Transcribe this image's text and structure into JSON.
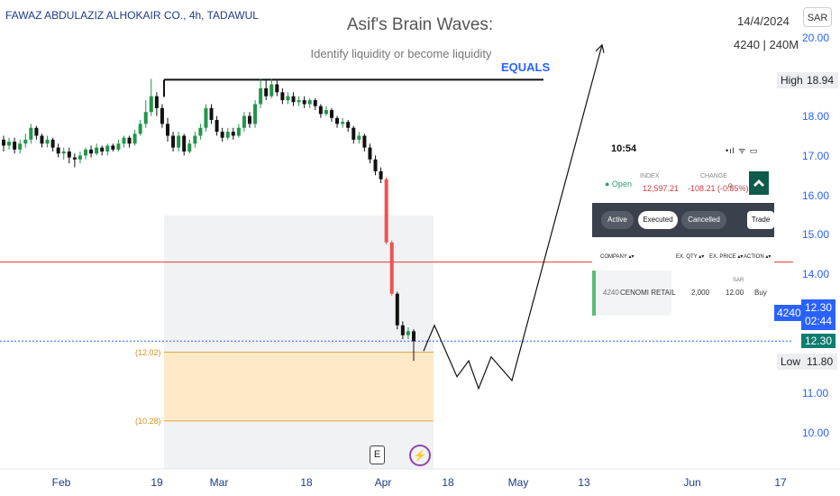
{
  "header": {
    "symbol": "FAWAZ ABDULAZIZ ALHOKAIR CO., 4h, TADAWUL",
    "title": "Asif's Brain Waves:",
    "subtitle": "Identify liquidity or become liquidity",
    "equals_label": "EQUALS",
    "date": "14/4/2024",
    "info": "4240 | 240M",
    "currency": "SAR"
  },
  "axis": {
    "y_ticks": [
      "20.00",
      "19.00",
      "18.00",
      "17.00",
      "16.00",
      "15.00",
      "14.00",
      "11.00",
      "10.00"
    ],
    "x_ticks": [
      "Feb",
      "19",
      "Mar",
      "18",
      "Apr",
      "18",
      "May",
      "13",
      "Jun",
      "17"
    ]
  },
  "side_labels": {
    "high_label": "High",
    "high_value": "18.94",
    "ticker": "4240",
    "last_price": "12.30",
    "countdown": "02:44",
    "last_price2": "12.30",
    "low_label": "Low",
    "low_value": "11.80"
  },
  "fib": {
    "upper": "(12.02)",
    "lower": "(10.28)"
  },
  "icons": {
    "event": "E",
    "event_icon": "earnings-icon",
    "flash_icon": "lightning-icon"
  },
  "colors": {
    "up": "#22954a",
    "down": "#111111",
    "drop": "#ef5350",
    "accent": "#2962ff",
    "zone": "#ffe9c7",
    "redline": "#e53935",
    "panel_dark": "#3b414c"
  },
  "chart_data": {
    "type": "candlestick",
    "series": [
      {
        "o": 17.4,
        "c": 17.25,
        "h": 17.5,
        "l": 17.1
      },
      {
        "o": 17.25,
        "c": 17.35,
        "h": 17.45,
        "l": 17.15
      },
      {
        "o": 17.35,
        "c": 17.15,
        "h": 17.45,
        "l": 17.05
      },
      {
        "o": 17.15,
        "c": 17.3,
        "h": 17.4,
        "l": 17.05
      },
      {
        "o": 17.3,
        "c": 17.4,
        "h": 17.55,
        "l": 17.2
      },
      {
        "o": 17.4,
        "c": 17.7,
        "h": 17.8,
        "l": 17.3
      },
      {
        "o": 17.7,
        "c": 17.5,
        "h": 17.75,
        "l": 17.4
      },
      {
        "o": 17.5,
        "c": 17.3,
        "h": 17.55,
        "l": 17.2
      },
      {
        "o": 17.3,
        "c": 17.4,
        "h": 17.5,
        "l": 17.2
      },
      {
        "o": 17.4,
        "c": 17.2,
        "h": 17.45,
        "l": 17.1
      },
      {
        "o": 17.2,
        "c": 17.05,
        "h": 17.3,
        "l": 16.95
      },
      {
        "o": 17.05,
        "c": 17.1,
        "h": 17.2,
        "l": 16.9
      },
      {
        "o": 17.1,
        "c": 16.95,
        "h": 17.2,
        "l": 16.8
      },
      {
        "o": 16.95,
        "c": 16.9,
        "h": 17.05,
        "l": 16.7
      },
      {
        "o": 16.9,
        "c": 17.0,
        "h": 17.1,
        "l": 16.8
      },
      {
        "o": 17.0,
        "c": 17.15,
        "h": 17.2,
        "l": 16.9
      },
      {
        "o": 17.15,
        "c": 17.05,
        "h": 17.25,
        "l": 16.95
      },
      {
        "o": 17.05,
        "c": 17.2,
        "h": 17.3,
        "l": 17.0
      },
      {
        "o": 17.2,
        "c": 17.1,
        "h": 17.25,
        "l": 17.0
      },
      {
        "o": 17.1,
        "c": 17.25,
        "h": 17.3,
        "l": 17.0
      },
      {
        "o": 17.25,
        "c": 17.15,
        "h": 17.3,
        "l": 17.1
      },
      {
        "o": 17.15,
        "c": 17.3,
        "h": 17.4,
        "l": 17.1
      },
      {
        "o": 17.3,
        "c": 17.45,
        "h": 17.5,
        "l": 17.2
      },
      {
        "o": 17.45,
        "c": 17.3,
        "h": 17.5,
        "l": 17.2
      },
      {
        "o": 17.3,
        "c": 17.55,
        "h": 17.65,
        "l": 17.25
      },
      {
        "o": 17.55,
        "c": 17.8,
        "h": 17.9,
        "l": 17.5
      },
      {
        "o": 17.8,
        "c": 18.1,
        "h": 18.4,
        "l": 17.7
      },
      {
        "o": 18.1,
        "c": 18.5,
        "h": 18.94,
        "l": 18.0
      },
      {
        "o": 18.5,
        "c": 18.2,
        "h": 18.6,
        "l": 18.0
      },
      {
        "o": 18.2,
        "c": 17.8,
        "h": 18.3,
        "l": 17.7
      },
      {
        "o": 17.8,
        "c": 17.5,
        "h": 17.95,
        "l": 17.35
      },
      {
        "o": 17.5,
        "c": 17.2,
        "h": 17.6,
        "l": 17.1
      },
      {
        "o": 17.2,
        "c": 17.5,
        "h": 17.6,
        "l": 17.1
      },
      {
        "o": 17.5,
        "c": 17.1,
        "h": 17.55,
        "l": 17.0
      },
      {
        "o": 17.1,
        "c": 17.3,
        "h": 17.4,
        "l": 17.05
      },
      {
        "o": 17.3,
        "c": 17.5,
        "h": 17.6,
        "l": 17.2
      },
      {
        "o": 17.5,
        "c": 17.7,
        "h": 17.8,
        "l": 17.4
      },
      {
        "o": 17.7,
        "c": 18.2,
        "h": 18.3,
        "l": 17.6
      },
      {
        "o": 18.2,
        "c": 17.9,
        "h": 18.3,
        "l": 17.8
      },
      {
        "o": 17.9,
        "c": 17.6,
        "h": 18.0,
        "l": 17.5
      },
      {
        "o": 17.6,
        "c": 17.45,
        "h": 17.7,
        "l": 17.35
      },
      {
        "o": 17.45,
        "c": 17.6,
        "h": 17.7,
        "l": 17.4
      },
      {
        "o": 17.6,
        "c": 17.5,
        "h": 17.7,
        "l": 17.4
      },
      {
        "o": 17.5,
        "c": 17.7,
        "h": 17.8,
        "l": 17.45
      },
      {
        "o": 17.7,
        "c": 18.0,
        "h": 18.1,
        "l": 17.6
      },
      {
        "o": 18.0,
        "c": 17.8,
        "h": 18.1,
        "l": 17.7
      },
      {
        "o": 17.8,
        "c": 18.3,
        "h": 18.4,
        "l": 17.7
      },
      {
        "o": 18.3,
        "c": 18.7,
        "h": 18.94,
        "l": 18.2
      },
      {
        "o": 18.7,
        "c": 18.5,
        "h": 18.9,
        "l": 18.4
      },
      {
        "o": 18.5,
        "c": 18.8,
        "h": 18.94,
        "l": 18.45
      },
      {
        "o": 18.8,
        "c": 18.6,
        "h": 18.9,
        "l": 18.5
      },
      {
        "o": 18.6,
        "c": 18.4,
        "h": 18.7,
        "l": 18.3
      },
      {
        "o": 18.4,
        "c": 18.5,
        "h": 18.6,
        "l": 18.3
      },
      {
        "o": 18.5,
        "c": 18.35,
        "h": 18.6,
        "l": 18.25
      },
      {
        "o": 18.35,
        "c": 18.4,
        "h": 18.5,
        "l": 18.25
      },
      {
        "o": 18.4,
        "c": 18.3,
        "h": 18.5,
        "l": 18.2
      },
      {
        "o": 18.3,
        "c": 18.4,
        "h": 18.45,
        "l": 18.2
      },
      {
        "o": 18.4,
        "c": 18.25,
        "h": 18.45,
        "l": 18.15
      },
      {
        "o": 18.25,
        "c": 18.05,
        "h": 18.3,
        "l": 17.95
      },
      {
        "o": 18.05,
        "c": 18.15,
        "h": 18.25,
        "l": 18.0
      },
      {
        "o": 18.15,
        "c": 17.95,
        "h": 18.2,
        "l": 17.85
      },
      {
        "o": 17.95,
        "c": 17.8,
        "h": 18.0,
        "l": 17.7
      },
      {
        "o": 17.8,
        "c": 17.85,
        "h": 17.95,
        "l": 17.7
      },
      {
        "o": 17.85,
        "c": 17.7,
        "h": 17.9,
        "l": 17.6
      },
      {
        "o": 17.7,
        "c": 17.4,
        "h": 17.75,
        "l": 17.3
      },
      {
        "o": 17.4,
        "c": 17.5,
        "h": 17.6,
        "l": 17.3
      },
      {
        "o": 17.5,
        "c": 17.2,
        "h": 17.55,
        "l": 17.1
      },
      {
        "o": 17.2,
        "c": 16.9,
        "h": 17.3,
        "l": 16.8
      },
      {
        "o": 16.9,
        "c": 16.6,
        "h": 17.0,
        "l": 16.5
      },
      {
        "o": 16.6,
        "c": 16.4,
        "h": 16.7,
        "l": 16.3
      },
      {
        "o": 16.4,
        "c": 14.8,
        "h": 16.45,
        "l": 14.75,
        "drop": true
      },
      {
        "o": 14.8,
        "c": 13.5,
        "h": 14.85,
        "l": 13.45,
        "drop": true
      },
      {
        "o": 13.5,
        "c": 12.7,
        "h": 13.55,
        "l": 12.6
      },
      {
        "o": 12.7,
        "c": 12.45,
        "h": 12.8,
        "l": 12.35
      },
      {
        "o": 12.45,
        "c": 12.55,
        "h": 12.65,
        "l": 12.35
      },
      {
        "o": 12.55,
        "c": 12.3,
        "h": 12.6,
        "l": 11.8
      }
    ],
    "levels": {
      "equal_highs": 18.94,
      "red_line": 14.3,
      "current": 12.3,
      "fib_upper": 12.02,
      "fib_lower": 10.28
    },
    "projection": [
      [
        12.05,
        0
      ],
      [
        12.7,
        1
      ],
      [
        11.4,
        2
      ],
      [
        11.8,
        3
      ],
      [
        11.1,
        4
      ],
      [
        11.9,
        5
      ],
      [
        11.3,
        6
      ],
      [
        19.8,
        7
      ]
    ],
    "y_range": [
      9.6,
      20.3
    ]
  },
  "panel": {
    "time": "10:54",
    "status": "•ıl ᯤ ▭",
    "market_state": "● Open",
    "index_label": "INDEX",
    "index_value": "12,597.21",
    "change_label": "CHANGE",
    "change_value": "-108.21 (-0.85%)",
    "search_icon": "⌕",
    "tabs": [
      "Active",
      "Executed",
      "Cancelled"
    ],
    "trade_button": "Trade",
    "columns": [
      "COMPANY ▴▾",
      "EX. QTY ▴▾",
      "EX. PRICE ▴▾",
      "ACTION ▴▾"
    ],
    "row": {
      "code": "4240",
      "name": "CENOMI RETAIL",
      "qty": "2,000",
      "currency": "SAR",
      "price": "12.00",
      "action": "Buy"
    }
  }
}
